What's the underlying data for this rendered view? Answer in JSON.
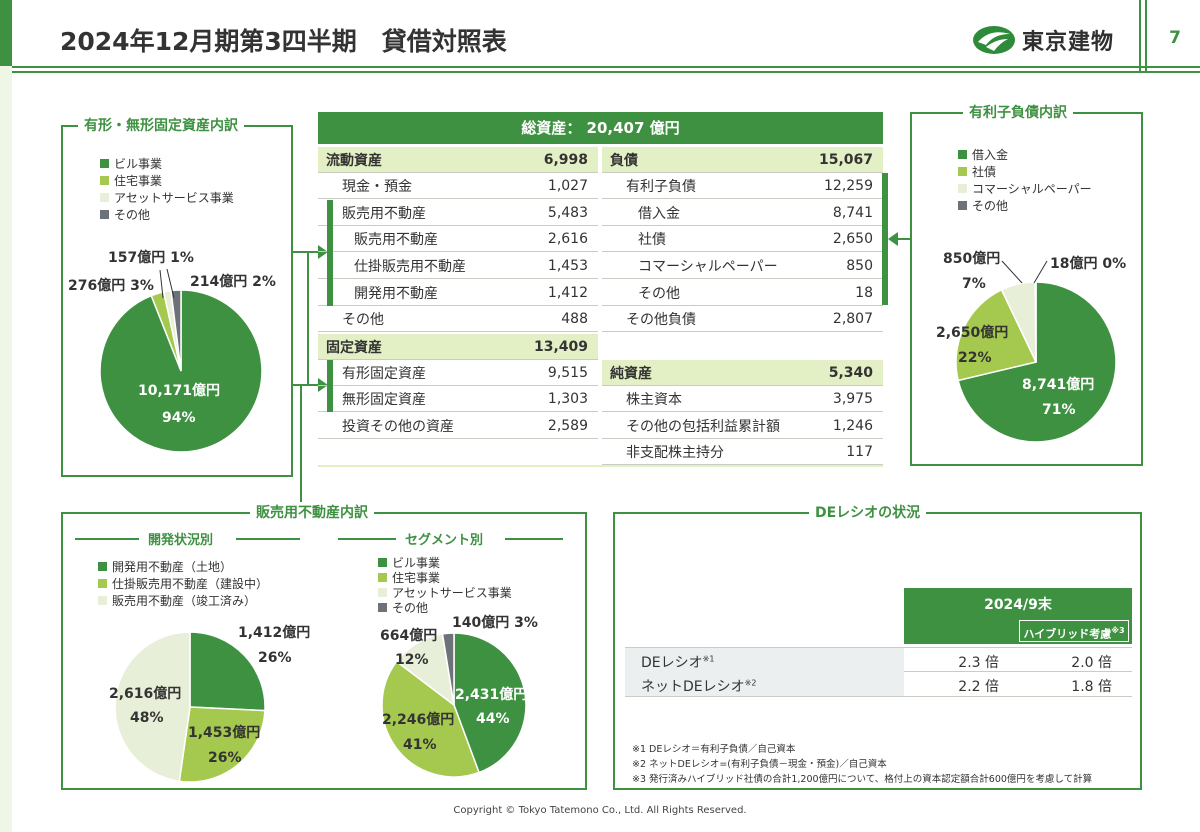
{
  "header": {
    "title": "2024年12月期第3四半期　貸借対照表",
    "logo_text": "東京建物",
    "page_number": "7"
  },
  "colors": {
    "accent": "#3f9142",
    "light_green": "#a5c84f",
    "pale_green": "#e8efd9",
    "gray": "#6d7178",
    "header_row": "#e3efc4"
  },
  "fixed_assets": {
    "title": "有形・無形固定資産内訳",
    "legend": [
      "ビル事業",
      "住宅事業",
      "アセットサービス事業",
      "その他"
    ],
    "labels": {
      "building": "10,171億円",
      "building_pct": "94%",
      "housing": "276億円 3%",
      "asset": "157億円 1%",
      "other": "214億円 2%"
    },
    "chart_data": {
      "type": "pie",
      "categories": [
        "ビル事業",
        "住宅事業",
        "アセットサービス事業",
        "その他"
      ],
      "values": [
        10171,
        276,
        157,
        214
      ],
      "colors": [
        "#3f9142",
        "#a5c84f",
        "#e8efd9",
        "#6d7178"
      ]
    }
  },
  "balance_sheet": {
    "total": "総資産： 20,407 億円",
    "current_assets": {
      "label": "流動資産",
      "value": "6,998"
    },
    "cash": {
      "label": "現金・預金",
      "value": "1,027"
    },
    "inventory": {
      "label": "販売用不動産",
      "value": "5,483"
    },
    "inv_sale": {
      "label": "販売用不動産",
      "value": "2,616"
    },
    "inv_wip": {
      "label": "仕掛販売用不動産",
      "value": "1,453"
    },
    "inv_dev": {
      "label": "開発用不動産",
      "value": "1,412"
    },
    "ca_other": {
      "label": "その他",
      "value": "488"
    },
    "fixed": {
      "label": "固定資産",
      "value": "13,409"
    },
    "tangible": {
      "label": "有形固定資産",
      "value": "9,515"
    },
    "intangible": {
      "label": "無形固定資産",
      "value": "1,303"
    },
    "investments": {
      "label": "投資その他の資産",
      "value": "2,589"
    },
    "liabilities": {
      "label": "負債",
      "value": "15,067"
    },
    "ibd": {
      "label": "有利子負債",
      "value": "12,259"
    },
    "loans": {
      "label": "借入金",
      "value": "8,741"
    },
    "bonds": {
      "label": "社債",
      "value": "2,650"
    },
    "cp": {
      "label": "コマーシャルペーパー",
      "value": "850"
    },
    "ibd_other": {
      "label": "その他",
      "value": "18"
    },
    "other_liab": {
      "label": "その他負債",
      "value": "2,807"
    },
    "net_assets": {
      "label": "純資産",
      "value": "5,340"
    },
    "capital": {
      "label": "株主資本",
      "value": "3,975"
    },
    "oci": {
      "label": "その他の包括利益累計額",
      "value": "1,246"
    },
    "nci": {
      "label": "非支配株主持分",
      "value": "117"
    }
  },
  "debt": {
    "title": "有利子負債内訳",
    "legend": [
      "借入金",
      "社債",
      "コマーシャルペーパー",
      "その他"
    ],
    "labels": {
      "loans": "8,741億円",
      "loans_pct": "71%",
      "bonds": "2,650億円",
      "bonds_pct": "22%",
      "cp": "850億円",
      "cp_pct": "7%",
      "other": "18億円 0%"
    },
    "chart_data": {
      "type": "pie",
      "categories": [
        "借入金",
        "社債",
        "コマーシャルペーパー",
        "その他"
      ],
      "values": [
        8741,
        2650,
        850,
        18
      ],
      "colors": [
        "#3f9142",
        "#a5c84f",
        "#e8efd9",
        "#6d7178"
      ]
    }
  },
  "inventory_breakdown": {
    "title": "販売用不動産内訳",
    "dev_status": {
      "title": "開発状況別",
      "legend": [
        "開発用不動産（土地）",
        "仕掛販売用不動産（建設中）",
        "販売用不動産（竣工済み）"
      ],
      "labels": {
        "dev": "1,412億円",
        "dev_pct": "26%",
        "wip": "1,453億円",
        "wip_pct": "26%",
        "done": "2,616億円",
        "done_pct": "48%"
      },
      "chart_data": {
        "type": "pie",
        "categories": [
          "開発用不動産（土地）",
          "仕掛販売用不動産（建設中）",
          "販売用不動産（竣工済み）"
        ],
        "values": [
          1412,
          1453,
          2616
        ],
        "colors": [
          "#3f9142",
          "#a5c84f",
          "#e8efd9"
        ]
      }
    },
    "segment": {
      "title": "セグメント別",
      "legend": [
        "ビル事業",
        "住宅事業",
        "アセットサービス事業",
        "その他"
      ],
      "labels": {
        "building": "2,431億円",
        "building_pct": "44%",
        "housing": "2,246億円",
        "housing_pct": "41%",
        "asset": "664億円",
        "asset_pct": "12%",
        "other": "140億円 3%"
      },
      "chart_data": {
        "type": "pie",
        "categories": [
          "ビル事業",
          "住宅事業",
          "アセットサービス事業",
          "その他"
        ],
        "values": [
          2431,
          2246,
          664,
          140
        ],
        "colors": [
          "#3f9142",
          "#a5c84f",
          "#e8efd9",
          "#6d7178"
        ]
      }
    }
  },
  "de_ratio": {
    "title": "DEレシオの状況",
    "year": "2024/9末",
    "hybrid_label": "ハイブリッド考慮",
    "hybrid_note": "※3",
    "rows": [
      {
        "label": "DEレシオ",
        "note": "※1",
        "v1": "2.3 倍",
        "v2": "2.0 倍"
      },
      {
        "label": "ネットDEレシオ",
        "note": "※2",
        "v1": "2.2 倍",
        "v2": "1.8 倍"
      }
    ],
    "notes": [
      "※1 DEレシオ＝有利子負債／自己資本",
      "※2 ネットDEレシオ=(有利子負債－現金・預金)／自己資本",
      "※3 発行済みハイブリッド社債の合計1,200億円について、格付上の資本認定額合計600億円を考慮して計算"
    ]
  },
  "footer": {
    "copyright": "Copyright © Tokyo Tatemono Co., Ltd. All Rights Reserved."
  }
}
